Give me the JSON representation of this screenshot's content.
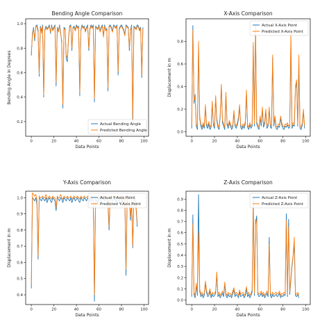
{
  "colors": {
    "actual": "#1f77b4",
    "predicted": "#ff7f0e",
    "axis": "#000000",
    "text": "#222222"
  },
  "chart_data": [
    {
      "type": "line",
      "title": "Bending Angle Comparison",
      "xlabel": "Data Points",
      "ylabel": "Bending Angle in Degrees",
      "xlim": [
        -5,
        104
      ],
      "ylim": [
        0.08,
        1.04
      ],
      "xticks": [
        0,
        20,
        40,
        60,
        80,
        100
      ],
      "yticks": [
        0.2,
        0.4,
        0.6,
        0.8,
        1.0
      ],
      "ytick_labels": [
        "0.2",
        "0.4",
        "0.6",
        "0.8",
        "1.0"
      ],
      "grid": false,
      "legend": "lower-right",
      "series": [
        {
          "name": "Actual Bending Angle",
          "color": "#1f77b4",
          "values": [
            0.74,
            0.92,
            0.97,
            0.86,
            0.98,
            0.99,
            0.95,
            0.57,
            0.98,
            0.94,
            0.99,
            0.4,
            0.95,
            0.98,
            0.96,
            0.97,
            0.99,
            0.92,
            0.99,
            0.95,
            0.97,
            0.99,
            0.49,
            0.97,
            0.94,
            0.99,
            0.93,
            0.84,
            0.31,
            0.97,
            0.96,
            0.71,
            0.69,
            0.88,
            0.98,
            0.99,
            0.78,
            0.97,
            0.98,
            0.95,
            0.99,
            0.97,
            0.98,
            0.41,
            0.95,
            0.99,
            0.97,
            0.98,
            0.94,
            0.97,
            0.99,
            0.78,
            0.96,
            0.99,
            0.97,
            0.99,
            0.36,
            0.98,
            0.97,
            0.96,
            0.99,
            0.94,
            0.97,
            0.99,
            0.9,
            0.99,
            0.95,
            0.96,
            0.45,
            0.98,
            0.99,
            0.97,
            0.94,
            0.99,
            0.98,
            0.97,
            0.99,
            0.58,
            0.96,
            0.98,
            0.99,
            0.97,
            0.95,
            0.91,
            0.99,
            0.98,
            0.97,
            0.78,
            0.95,
            0.99,
            0.16,
            0.98,
            0.97,
            0.96,
            0.99,
            0.98,
            0.95,
            0.97,
            0.56,
            0.97
          ]
        },
        {
          "name": "Predicted Bending Angle",
          "color": "#ff7f0e",
          "values": [
            0.76,
            0.9,
            0.96,
            0.88,
            0.97,
            0.98,
            0.93,
            0.59,
            0.97,
            0.92,
            0.98,
            0.42,
            0.94,
            0.97,
            0.95,
            0.96,
            0.98,
            0.93,
            0.98,
            0.94,
            0.96,
            0.98,
            0.52,
            0.96,
            0.93,
            0.98,
            0.92,
            0.86,
            0.34,
            0.96,
            0.95,
            0.74,
            0.72,
            0.87,
            0.97,
            0.98,
            0.8,
            0.96,
            0.97,
            0.94,
            0.98,
            0.96,
            0.97,
            0.44,
            0.94,
            0.98,
            0.96,
            0.97,
            0.93,
            0.96,
            0.98,
            0.8,
            0.95,
            0.98,
            0.96,
            0.98,
            0.39,
            0.97,
            0.96,
            0.95,
            0.98,
            0.93,
            0.96,
            0.98,
            0.89,
            0.98,
            0.94,
            0.95,
            0.48,
            0.97,
            0.98,
            0.96,
            0.93,
            0.98,
            0.97,
            0.96,
            0.98,
            0.61,
            0.95,
            0.97,
            0.98,
            0.96,
            0.94,
            0.9,
            0.98,
            0.97,
            0.96,
            0.8,
            0.94,
            0.98,
            0.22,
            0.97,
            0.96,
            0.95,
            0.98,
            0.97,
            0.94,
            0.96,
            0.58,
            0.96
          ]
        }
      ]
    },
    {
      "type": "line",
      "title": "X-Axis Comparison",
      "xlabel": "Data Points",
      "ylabel": "Displacement in m",
      "xlim": [
        -5,
        104
      ],
      "ylim": [
        -0.04,
        1.0
      ],
      "xticks": [
        0,
        20,
        40,
        60,
        80,
        100
      ],
      "yticks": [
        0.0,
        0.2,
        0.4,
        0.6,
        0.8
      ],
      "ytick_labels": [
        "0.0",
        "0.2",
        "0.4",
        "0.6",
        "0.8"
      ],
      "grid": false,
      "legend": "top-right",
      "series": [
        {
          "name": "Actual X-Axis Point",
          "color": "#1f77b4",
          "values": [
            0.03,
            0.94,
            0.25,
            0.33,
            0.05,
            0.02,
            0.75,
            0.12,
            0.05,
            0.02,
            0.06,
            0.03,
            0.22,
            0.05,
            0.03,
            0.07,
            0.02,
            0.04,
            0.25,
            0.06,
            0.03,
            0.3,
            0.1,
            0.04,
            0.02,
            0.14,
            0.41,
            0.08,
            0.05,
            0.02,
            0.33,
            0.06,
            0.03,
            0.08,
            0.05,
            0.02,
            0.04,
            0.17,
            0.05,
            0.03,
            0.06,
            0.11,
            0.22,
            0.04,
            0.02,
            0.05,
            0.03,
            0.07,
            0.35,
            0.04,
            0.02,
            0.06,
            0.03,
            0.05,
            0.76,
            0.05,
            0.95,
            0.07,
            0.04,
            0.02,
            0.12,
            0.05,
            0.2,
            0.04,
            0.07,
            0.18,
            0.03,
            0.05,
            0.2,
            0.04,
            0.03,
            0.66,
            0.05,
            0.12,
            0.03,
            0.02,
            0.05,
            0.04,
            0.12,
            0.06,
            0.03,
            0.02,
            0.05,
            0.04,
            0.06,
            0.03,
            0.04,
            0.8,
            0.03,
            0.06,
            0.05,
            0.38,
            0.44,
            0.05,
            0.61,
            0.03,
            0.02,
            0.06,
            0.18,
            0.03
          ]
        },
        {
          "name": "Predicted X-Axis Point",
          "color": "#ff7f0e",
          "values": [
            0.06,
            0.9,
            0.28,
            0.31,
            0.07,
            0.04,
            0.8,
            0.14,
            0.07,
            0.04,
            0.08,
            0.05,
            0.24,
            0.07,
            0.05,
            0.09,
            0.04,
            0.06,
            0.27,
            0.08,
            0.05,
            0.32,
            0.12,
            0.06,
            0.04,
            0.16,
            0.42,
            0.1,
            0.07,
            0.04,
            0.35,
            0.08,
            0.05,
            0.1,
            0.07,
            0.04,
            0.06,
            0.19,
            0.07,
            0.05,
            0.08,
            0.13,
            0.24,
            0.06,
            0.04,
            0.07,
            0.05,
            0.09,
            0.37,
            0.06,
            0.04,
            0.08,
            0.05,
            0.07,
            0.79,
            0.07,
            0.92,
            0.09,
            0.06,
            0.04,
            0.14,
            0.07,
            0.22,
            0.06,
            0.09,
            0.2,
            0.05,
            0.07,
            0.22,
            0.06,
            0.05,
            0.68,
            0.07,
            0.14,
            0.05,
            0.04,
            0.07,
            0.06,
            0.14,
            0.08,
            0.05,
            0.04,
            0.07,
            0.06,
            0.08,
            0.05,
            0.06,
            0.88,
            0.05,
            0.08,
            0.07,
            0.4,
            0.46,
            0.07,
            0.68,
            0.05,
            0.04,
            0.08,
            0.2,
            0.05
          ]
        }
      ]
    },
    {
      "type": "line",
      "title": "Y-Axis Comparison",
      "xlabel": "Data Points",
      "ylabel": "Displacement in m",
      "xlim": [
        -5,
        104
      ],
      "ylim": [
        0.34,
        1.04
      ],
      "xticks": [
        0,
        20,
        40,
        60,
        80,
        100
      ],
      "yticks": [
        0.4,
        0.5,
        0.6,
        0.7,
        0.8,
        0.9,
        1.0
      ],
      "ytick_labels": [
        "0.4",
        "0.5",
        "0.6",
        "0.7",
        "0.8",
        "0.9",
        "1.0"
      ],
      "grid": false,
      "legend": "top-right",
      "series": [
        {
          "name": "Actual Y-Axis Point",
          "color": "#1f77b4",
          "values": [
            0.44,
            1.0,
            0.99,
            0.98,
            1.0,
            0.96,
            0.62,
            1.0,
            0.99,
            0.98,
            1.0,
            0.99,
            0.98,
            1.0,
            0.97,
            0.99,
            1.0,
            0.98,
            0.97,
            1.0,
            0.99,
            0.98,
            0.92,
            1.0,
            0.99,
            0.98,
            1.0,
            0.99,
            0.97,
            1.0,
            0.99,
            0.98,
            1.0,
            0.99,
            0.98,
            1.0,
            0.97,
            0.99,
            1.0,
            0.98,
            0.99,
            1.0,
            0.98,
            0.97,
            1.0,
            0.99,
            0.98,
            1.0,
            0.99,
            0.98,
            1.0,
            0.99,
            0.97,
            1.0,
            0.98,
            0.99,
            0.36,
            0.99,
            0.98,
            0.97,
            1.0,
            0.99,
            0.98,
            1.0,
            0.99,
            0.98,
            1.0,
            0.99,
            0.96,
            0.8,
            1.0,
            0.99,
            0.98,
            1.0,
            0.99,
            0.97,
            1.0,
            0.99,
            0.98,
            1.0,
            0.99,
            0.97,
            1.0,
            0.99,
            0.52,
            0.98,
            1.0,
            0.99,
            0.86,
            0.98,
            0.69,
            0.99,
            1.0,
            0.93,
            0.82
          ]
        },
        {
          "name": "Predicted Y-Axis Point",
          "color": "#ff7f0e",
          "values": [
            0.47,
            1.03,
            1.02,
            1.01,
            1.02,
            0.99,
            0.64,
            1.01,
            1.0,
            1.0,
            1.01,
            1.0,
            1.0,
            1.02,
            0.99,
            1.0,
            1.01,
            1.0,
            0.99,
            1.01,
            1.0,
            1.0,
            0.94,
            1.01,
            1.0,
            1.0,
            1.02,
            1.0,
            0.99,
            1.01,
            1.0,
            1.0,
            1.01,
            1.0,
            1.0,
            1.01,
            0.99,
            1.0,
            1.01,
            1.0,
            1.0,
            1.01,
            1.0,
            0.99,
            1.01,
            1.0,
            1.0,
            1.01,
            1.0,
            1.0,
            1.01,
            1.0,
            0.99,
            1.01,
            1.0,
            1.0,
            0.4,
            1.0,
            1.0,
            0.99,
            1.01,
            1.0,
            1.0,
            1.01,
            1.0,
            1.0,
            1.01,
            1.0,
            0.98,
            0.82,
            1.01,
            1.0,
            1.0,
            1.01,
            1.0,
            0.99,
            1.01,
            1.0,
            1.0,
            1.01,
            1.0,
            0.99,
            1.01,
            1.0,
            0.56,
            1.0,
            1.01,
            1.0,
            0.88,
            1.0,
            0.7,
            1.0,
            1.01,
            0.95,
            0.84
          ]
        }
      ]
    },
    {
      "type": "line",
      "title": "Z-Axis Comparison",
      "xlabel": "Data Points",
      "ylabel": "Displacement in m",
      "xlim": [
        -5,
        104
      ],
      "ylim": [
        -0.04,
        0.97
      ],
      "xticks": [
        0,
        20,
        40,
        60,
        80,
        100
      ],
      "yticks": [
        0.0,
        0.1,
        0.2,
        0.3,
        0.4,
        0.5,
        0.6,
        0.7,
        0.8,
        0.9
      ],
      "ytick_labels": [
        "0.0",
        "0.1",
        "0.2",
        "0.3",
        "0.4",
        "0.5",
        "0.6",
        "0.7",
        "0.8",
        "0.9"
      ],
      "grid": false,
      "legend": "top-right",
      "series": [
        {
          "name": "Actual Z-Axis Point",
          "color": "#1f77b4",
          "values": [
            0.03,
            0.76,
            0.05,
            0.02,
            0.13,
            0.04,
            0.94,
            0.08,
            0.03,
            0.05,
            0.02,
            0.04,
            0.15,
            0.07,
            0.03,
            0.04,
            0.08,
            0.02,
            0.05,
            0.03,
            0.04,
            0.06,
            0.23,
            0.03,
            0.05,
            0.02,
            0.04,
            0.06,
            0.03,
            0.14,
            0.04,
            0.02,
            0.05,
            0.03,
            0.04,
            0.02,
            0.06,
            0.09,
            0.03,
            0.05,
            0.04,
            0.02,
            0.07,
            0.03,
            0.04,
            0.05,
            0.02,
            0.04,
            0.1,
            0.03,
            0.05,
            0.02,
            0.04,
            0.07,
            0.91,
            0.04,
            0.67,
            0.75,
            0.05,
            0.03,
            0.04,
            0.06,
            0.03,
            0.05,
            0.02,
            0.04,
            0.06,
            0.03,
            0.56,
            0.04,
            0.02,
            0.05,
            0.03,
            0.04,
            0.05,
            0.03,
            0.04,
            0.06,
            0.02,
            0.04,
            0.03,
            0.05,
            0.04,
            0.77,
            0.03,
            0.72,
            0.05,
            0.18,
            0.3,
            0.39,
            0.49,
            0.04,
            0.03,
            0.05,
            0.02
          ]
        },
        {
          "name": "Predicted Z-Axis Point",
          "color": "#ff7f0e",
          "values": [
            0.05,
            0.68,
            0.07,
            0.04,
            0.15,
            0.06,
            0.6,
            0.1,
            0.05,
            0.07,
            0.04,
            0.06,
            0.17,
            0.09,
            0.05,
            0.06,
            0.1,
            0.04,
            0.07,
            0.05,
            0.06,
            0.08,
            0.25,
            0.05,
            0.07,
            0.04,
            0.06,
            0.08,
            0.05,
            0.16,
            0.06,
            0.04,
            0.07,
            0.05,
            0.06,
            0.04,
            0.08,
            0.11,
            0.05,
            0.07,
            0.06,
            0.04,
            0.09,
            0.05,
            0.06,
            0.07,
            0.04,
            0.06,
            0.12,
            0.05,
            0.07,
            0.04,
            0.06,
            0.09,
            0.84,
            0.06,
            0.72,
            0.7,
            0.07,
            0.05,
            0.06,
            0.08,
            0.05,
            0.07,
            0.04,
            0.06,
            0.08,
            0.05,
            0.5,
            0.06,
            0.04,
            0.07,
            0.05,
            0.06,
            0.07,
            0.05,
            0.06,
            0.08,
            0.04,
            0.06,
            0.05,
            0.07,
            0.06,
            0.71,
            0.05,
            0.65,
            0.07,
            0.2,
            0.32,
            0.4,
            0.56,
            0.06,
            0.05,
            0.07,
            0.04
          ]
        }
      ]
    }
  ]
}
